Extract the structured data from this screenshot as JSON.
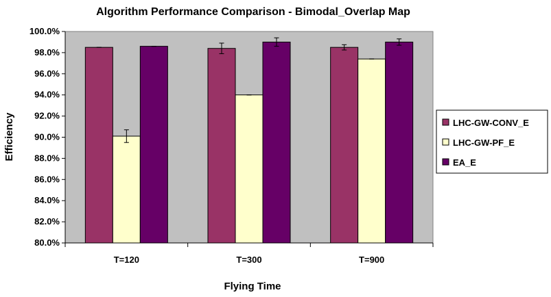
{
  "chart_data": {
    "type": "bar",
    "title": "Algorithm Performance Comparison - Bimodal_Overlap Map",
    "xlabel": "Flying Time",
    "ylabel": "Efficiency",
    "categories": [
      "T=120",
      "T=300",
      "T=900"
    ],
    "ylim": [
      80,
      100
    ],
    "ytick_step": 2,
    "ytick_format": "percent_1dp",
    "grid": false,
    "legend_position": "right",
    "plot_background": "#c0c0c0",
    "series": [
      {
        "name": "LHC-GW-CONV_E",
        "color": "#993366",
        "values": [
          98.5,
          98.4,
          98.5
        ],
        "errors": [
          0.0,
          0.5,
          0.25
        ]
      },
      {
        "name": "LHC-GW-PF_E",
        "color": "#ffffcc",
        "values": [
          90.1,
          94.0,
          97.4
        ],
        "errors": [
          0.6,
          0.0,
          0.0
        ]
      },
      {
        "name": "EA_E",
        "color": "#660066",
        "values": [
          98.6,
          99.0,
          99.0
        ],
        "errors": [
          0.0,
          0.4,
          0.3
        ]
      }
    ]
  }
}
